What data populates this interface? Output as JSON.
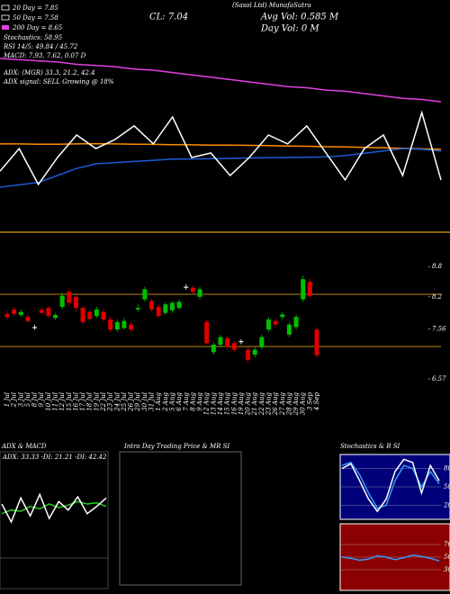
{
  "chart_data": [
    {
      "type": "line",
      "title": "(Sasol Ltd) MunafaSutra",
      "annotations": [
        "20 Day = 7.85",
        "50 Day = 7.58",
        "200 Day = 8.65",
        "Stochastics: 58.95",
        "RSI 14/5: 49.84 / 45.72",
        "MACD: 7.93, 7.62, 0.07 D",
        "ADX: (MGR) 33.3, 21.2, 42.4",
        "ADX signal: SELL Growing @ 18%",
        "CL: 7.04",
        "Avg Vol: 0.585 M",
        "Day Vol: 0 M"
      ],
      "categories": [
        null,
        null,
        null,
        null,
        null,
        null,
        null,
        null,
        null,
        null,
        null,
        null,
        null,
        null,
        null,
        null,
        null,
        null,
        null,
        null,
        null,
        null,
        null,
        null
      ],
      "ylim": [
        0,
        100
      ],
      "series": [
        {
          "color": "#e040e0",
          "values": [
            75,
            74.5,
            74,
            73.5,
            72.5,
            72,
            71.5,
            70.5,
            70,
            69,
            68,
            67,
            66,
            65,
            64,
            63,
            62.5,
            61.5,
            61,
            60,
            59,
            58,
            57.5,
            56.5
          ]
        },
        {
          "color": "#ff8c00",
          "values": [
            38.5,
            38.5,
            38.4,
            38.4,
            38.5,
            38.6,
            38.5,
            38.4,
            38.3,
            38.2,
            38.1,
            38,
            38,
            37.9,
            37.8,
            37.6,
            37.5,
            37.3,
            37.2,
            37,
            36.8,
            36.6,
            36.4,
            36.2
          ]
        },
        {
          "color": "#1e5bd6",
          "values": [
            20,
            21,
            22,
            25,
            28,
            30,
            30.5,
            31,
            31.5,
            32,
            32,
            32.2,
            32.3,
            32.5,
            32.6,
            32.7,
            32.8,
            33,
            33.5,
            34.5,
            35.5,
            36.5,
            36.2,
            35.5
          ]
        },
        {
          "color": "#ffffff",
          "values": [
            26.9,
            36.5,
            21.2,
            32.7,
            42.3,
            36.5,
            40.4,
            46.2,
            38.5,
            50,
            32.7,
            34.6,
            25,
            32.7,
            42.3,
            38.5,
            46.2,
            34.6,
            23.1,
            36.5,
            42.3,
            25,
            51.9,
            23.1
          ]
        }
      ]
    },
    {
      "type": "candlestick",
      "categories": [
        "1 Jul",
        "2 Jul",
        "3 Jul",
        "5 Jul",
        "8 Jul",
        "9 Jul",
        "10 Jul",
        "11 Jul",
        "12 Jul",
        "15 Jul",
        "16 Jul",
        "17 Jul",
        "18 Jul",
        "19 Jul",
        "22 Jul",
        "23 Jul",
        "24 Jul",
        "25 Jul",
        "26 Jul",
        "29 Jul",
        "30 Jul",
        "31 Jul",
        "1 Aug",
        "2 Aug",
        "5 Aug",
        "6 Aug",
        "7 Aug",
        "8 Aug",
        "9 Aug",
        "12 Aug",
        "13 Aug",
        "14 Aug",
        "15 Aug",
        "16 Aug",
        "19 Aug",
        "20 Aug",
        "21 Aug",
        "22 Aug",
        "23 Aug",
        "26 Aug",
        "27 Aug",
        "28 Aug",
        "29 Aug",
        "30 Aug",
        "3 Sep",
        "4 Sep"
      ],
      "open": [
        7.86,
        7.95,
        7.84,
        7.8,
        7.6,
        7.94,
        7.98,
        7.78,
        8,
        8.3,
        8.2,
        7.98,
        7.9,
        7.82,
        7.9,
        7.75,
        7.55,
        7.58,
        7.65,
        7.95,
        8.15,
        8.12,
        8,
        7.88,
        7.93,
        7.98,
        8.38,
        8.38,
        8.2,
        7.7,
        7.1,
        7.25,
        7.38,
        7.28,
        7.3,
        7.15,
        7.05,
        7.2,
        7.55,
        7.72,
        7.8,
        7.45,
        7.6,
        8.15,
        8.5,
        7.55
      ],
      "high": [
        7.92,
        8,
        7.95,
        7.85,
        7.65,
        8,
        8.02,
        7.88,
        8.28,
        8.36,
        8.25,
        8.02,
        7.95,
        8,
        7.95,
        7.8,
        7.75,
        7.78,
        7.7,
        8.05,
        8.4,
        8.16,
        8.05,
        8.1,
        8.12,
        8.15,
        8.45,
        8.42,
        8.4,
        7.75,
        7.3,
        7.45,
        7.42,
        7.33,
        7.36,
        7.2,
        7.2,
        7.45,
        7.8,
        7.78,
        7.9,
        7.7,
        7.85,
        8.62,
        8.56,
        7.6
      ],
      "low": [
        7.75,
        7.82,
        7.8,
        7.68,
        7.55,
        7.85,
        7.78,
        7.74,
        7.95,
        8.02,
        7.92,
        7.66,
        7.72,
        7.78,
        7.7,
        7.5,
        7.5,
        7.55,
        7.5,
        7.9,
        8.1,
        7.9,
        7.78,
        7.84,
        7.88,
        7.94,
        8.34,
        8.25,
        8.15,
        7.25,
        7.05,
        7.2,
        7.15,
        7.1,
        7.26,
        6.9,
        7,
        7.15,
        7.5,
        7.6,
        7.75,
        7.4,
        7.55,
        8.1,
        8.18,
        7.0
      ],
      "close": [
        7.8,
        7.86,
        7.9,
        7.72,
        7.58,
        7.88,
        7.82,
        7.84,
        8.22,
        8.08,
        7.98,
        7.7,
        7.76,
        7.95,
        7.75,
        7.55,
        7.7,
        7.72,
        7.55,
        7.98,
        8.35,
        7.95,
        7.82,
        8.05,
        8.08,
        8.1,
        8.4,
        8.3,
        8.35,
        7.28,
        7.25,
        7.4,
        7.2,
        7.15,
        7.32,
        6.95,
        7.15,
        7.4,
        7.75,
        7.65,
        7.85,
        7.65,
        7.8,
        8.55,
        8.22,
        7.04
      ],
      "ylim": [
        6.5,
        9.0
      ],
      "yticks": [
        8.8,
        8.2,
        7.56,
        6.57
      ]
    },
    {
      "type": "line",
      "title": "ADX & MACD",
      "annotation": "ADX: 33.33 -DI: 21.21 -DI: 42.42",
      "categories": [
        null,
        null,
        null,
        null,
        null,
        null,
        null,
        null,
        null,
        null,
        null,
        null
      ],
      "ylim": [
        0,
        60
      ],
      "series": [
        {
          "color": "#22cc22",
          "values": [
            22,
            25,
            24,
            28,
            26,
            30,
            27,
            29,
            32,
            30,
            31,
            28
          ]
        },
        {
          "color": "#ffffff",
          "values": [
            30,
            15,
            35,
            20,
            38,
            18,
            32,
            25,
            36,
            22,
            28,
            35
          ]
        }
      ]
    },
    {
      "type": "box",
      "title": "Intra Day Trading Price & MR SI"
    },
    {
      "type": "line",
      "title": "Stochastics & R SI",
      "categories": [
        null,
        null,
        null,
        null,
        null,
        null,
        null,
        null,
        null,
        null,
        null,
        null
      ],
      "ylim": [
        0,
        100
      ],
      "yticks": [
        80,
        50,
        20
      ],
      "series": [
        {
          "color": "#3399ff",
          "values": [
            85,
            90,
            70,
            40,
            15,
            20,
            60,
            85,
            80,
            50,
            75,
            55
          ]
        },
        {
          "color": "#ffffff",
          "values": [
            80,
            88,
            60,
            30,
            10,
            30,
            75,
            95,
            90,
            40,
            85,
            60
          ]
        }
      ]
    },
    {
      "type": "line",
      "categories": [
        null,
        null,
        null,
        null,
        null,
        null,
        null,
        null,
        null,
        null,
        null,
        null
      ],
      "ylim": [
        0,
        100
      ],
      "yticks": [
        70,
        50,
        30
      ],
      "series": [
        {
          "color": "#3399ff",
          "values": [
            50,
            48,
            45,
            47,
            52,
            50,
            46,
            49,
            53,
            51,
            48,
            44
          ]
        }
      ]
    }
  ]
}
